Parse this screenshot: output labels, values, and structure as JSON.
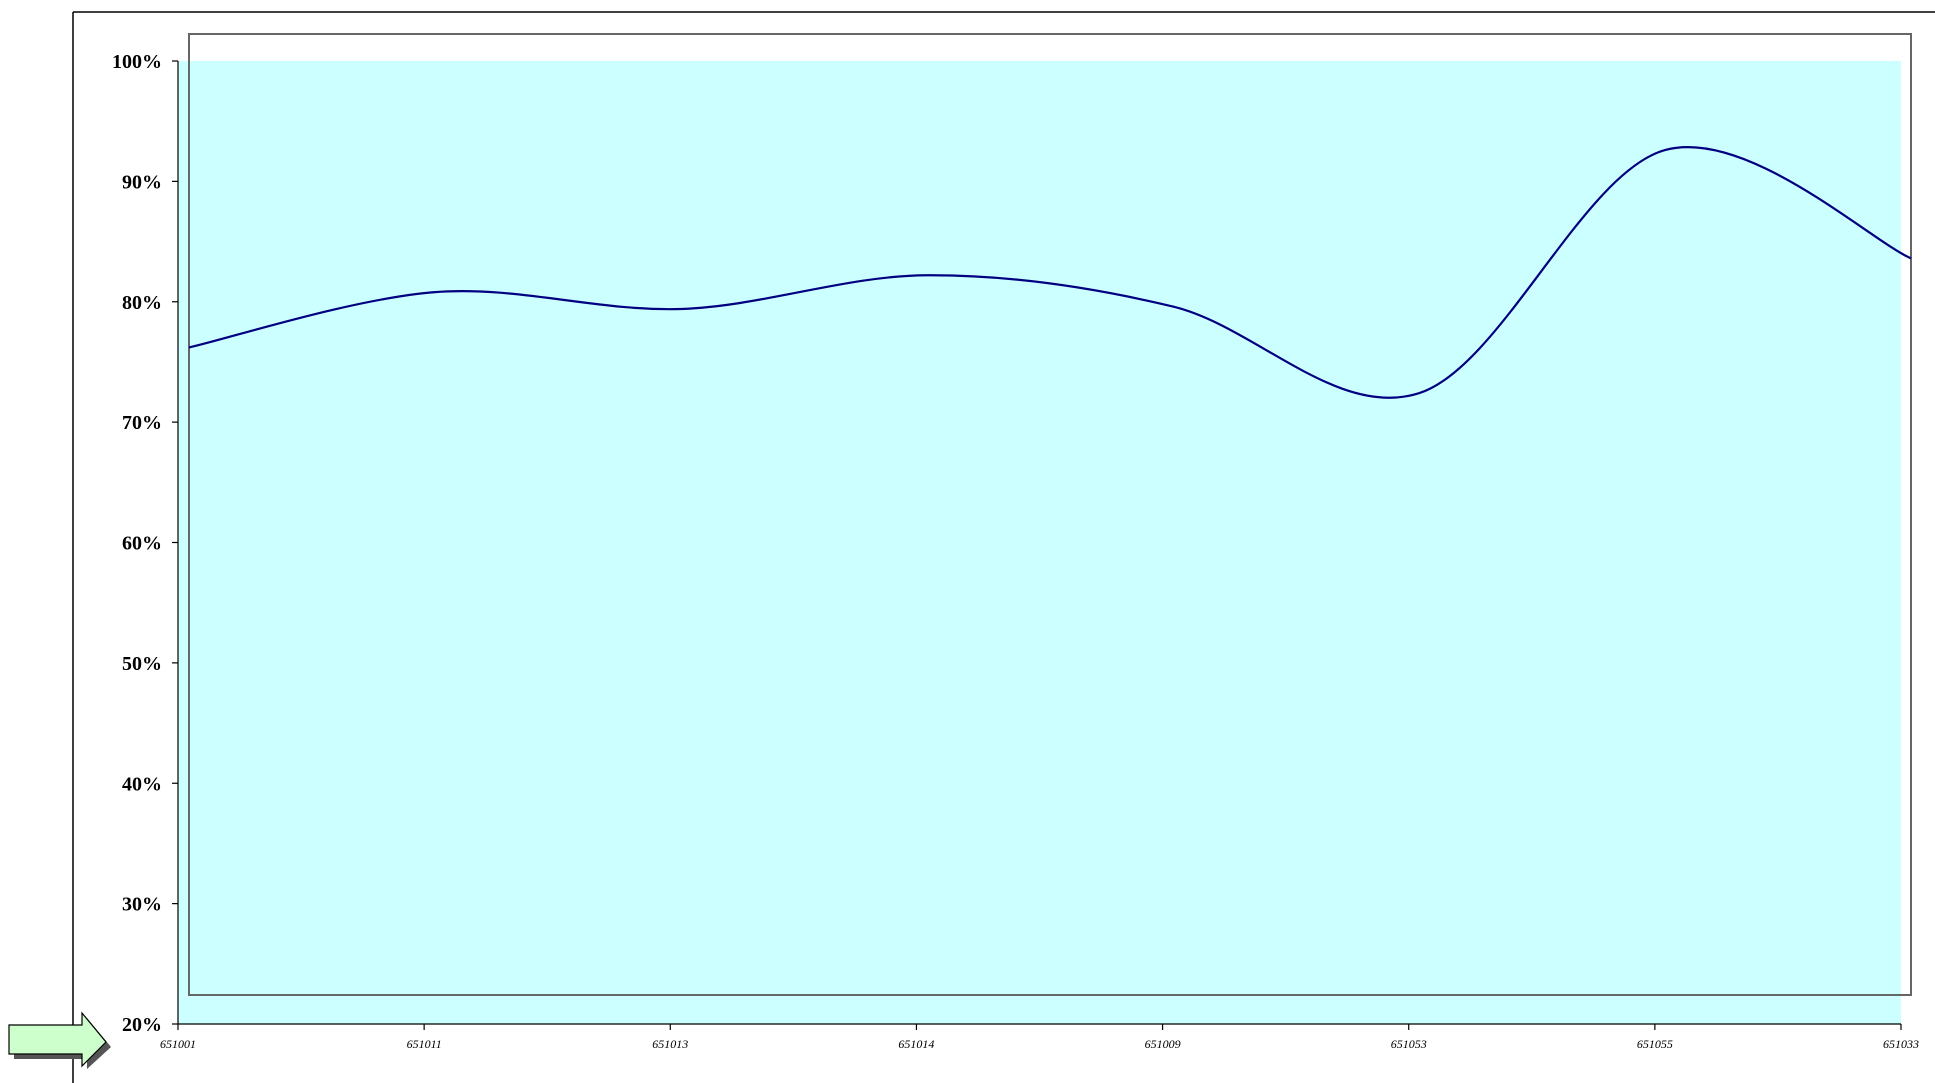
{
  "chart_data": {
    "type": "line",
    "title": "",
    "xlabel": "",
    "ylabel": "",
    "categories": [
      "651001",
      "651011",
      "651013",
      "651014",
      "651009",
      "651053",
      "651055",
      "651033"
    ],
    "series": [
      {
        "values": [
          76.2,
          80.8,
          79.4,
          82.2,
          79.6,
          72.4,
          92.6,
          83.6
        ]
      }
    ],
    "ylim": [
      20,
      100
    ],
    "yticks": [
      "20%",
      "30%",
      "40%",
      "50%",
      "60%",
      "70%",
      "80%",
      "90%",
      "100%"
    ],
    "plot_background": "#ccffff",
    "line_color": "#000080",
    "grid": false,
    "smooth": true
  },
  "decorations": {
    "arrow_color": "#ccffcc"
  }
}
